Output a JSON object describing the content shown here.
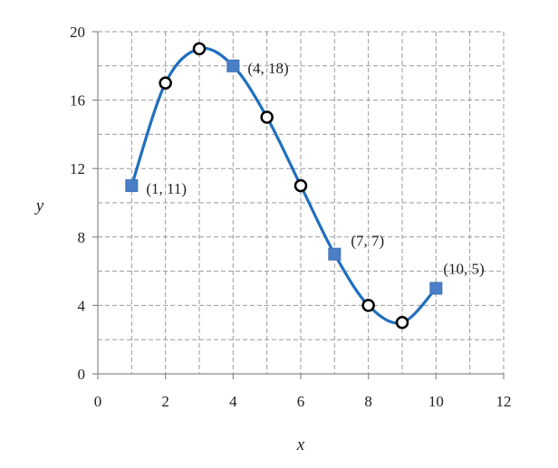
{
  "chart_data": {
    "type": "scatter",
    "title": "",
    "xlabel": "x",
    "ylabel": "y",
    "xlim": [
      0,
      12
    ],
    "ylim": [
      0,
      20
    ],
    "x_major_ticks": [
      0,
      2,
      4,
      6,
      8,
      10,
      12
    ],
    "y_major_ticks": [
      0,
      4,
      8,
      12,
      16,
      20
    ],
    "x_minor_step": 1,
    "y_minor_step": 2,
    "grid": true,
    "legend": "none",
    "colors": {
      "curve": "#1f6fbf",
      "square_marker": "#4a7fc8",
      "square_marker_edge": "#3f6fb0",
      "circle_marker_fill": "#ffffff",
      "circle_marker_edge": "#000000",
      "grid": "#9a9a9a",
      "axis": "#8a8a8a"
    },
    "series": [
      {
        "marker": "square",
        "points": [
          {
            "x": 1,
            "y": 11,
            "label": "(1, 11)"
          },
          {
            "x": 4,
            "y": 18,
            "label": "(4, 18)"
          },
          {
            "x": 7,
            "y": 7,
            "label": "(7, 7)"
          },
          {
            "x": 10,
            "y": 5,
            "label": "(10, 5)"
          }
        ]
      },
      {
        "marker": "circle",
        "points": [
          {
            "x": 2,
            "y": 17
          },
          {
            "x": 3,
            "y": 19
          },
          {
            "x": 5,
            "y": 15
          },
          {
            "x": 6,
            "y": 11
          },
          {
            "x": 8,
            "y": 4
          },
          {
            "x": 9,
            "y": 3
          }
        ]
      }
    ],
    "curve": {
      "x": [
        1,
        2,
        3,
        4,
        5,
        6,
        7,
        8,
        9,
        10
      ],
      "y": [
        11,
        17,
        19,
        18,
        15,
        11,
        7,
        4,
        3,
        5
      ]
    }
  }
}
